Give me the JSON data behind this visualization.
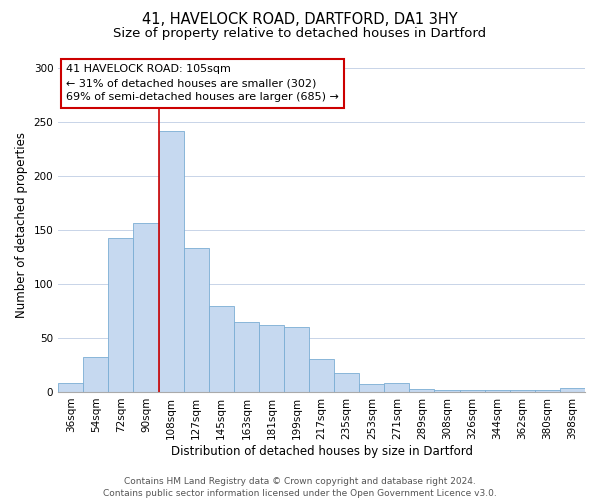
{
  "title1": "41, HAVELOCK ROAD, DARTFORD, DA1 3HY",
  "title2": "Size of property relative to detached houses in Dartford",
  "xlabel": "Distribution of detached houses by size in Dartford",
  "ylabel": "Number of detached properties",
  "categories": [
    "36sqm",
    "54sqm",
    "72sqm",
    "90sqm",
    "108sqm",
    "127sqm",
    "145sqm",
    "163sqm",
    "181sqm",
    "199sqm",
    "217sqm",
    "235sqm",
    "253sqm",
    "271sqm",
    "289sqm",
    "308sqm",
    "326sqm",
    "344sqm",
    "362sqm",
    "380sqm",
    "398sqm"
  ],
  "values": [
    8,
    32,
    143,
    157,
    242,
    133,
    80,
    65,
    62,
    60,
    31,
    18,
    7,
    8,
    3,
    2,
    2,
    2,
    2,
    2,
    4
  ],
  "bar_color": "#c6d9f0",
  "bar_edge_color": "#7aadd4",
  "vline_index": 4,
  "vline_color": "#cc0000",
  "annotation_line1": "41 HAVELOCK ROAD: 105sqm",
  "annotation_line2": "← 31% of detached houses are smaller (302)",
  "annotation_line3": "69% of semi-detached houses are larger (685) →",
  "annotation_box_facecolor": "#ffffff",
  "annotation_box_edgecolor": "#cc0000",
  "ylim": [
    0,
    310
  ],
  "yticks": [
    0,
    50,
    100,
    150,
    200,
    250,
    300
  ],
  "footer1": "Contains HM Land Registry data © Crown copyright and database right 2024.",
  "footer2": "Contains public sector information licensed under the Open Government Licence v3.0.",
  "bg_color": "#ffffff",
  "grid_color": "#c8d4e8",
  "title1_fontsize": 10.5,
  "title2_fontsize": 9.5,
  "axis_label_fontsize": 8.5,
  "tick_fontsize": 7.5,
  "annotation_fontsize": 8,
  "footer_fontsize": 6.5
}
